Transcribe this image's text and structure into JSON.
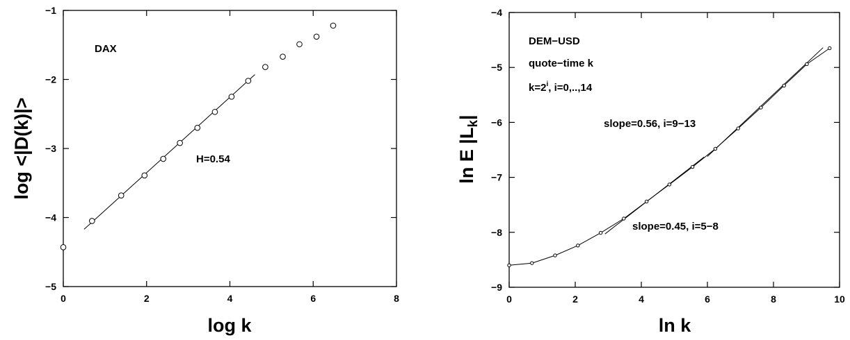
{
  "chart_data": [
    {
      "type": "scatter",
      "title": "",
      "xlabel": "log k",
      "ylabel": "log <|D(k)|>",
      "xlim": [
        0,
        8
      ],
      "ylim": [
        -5,
        -1
      ],
      "xticks": [
        "0",
        "2",
        "4",
        "6",
        "8"
      ],
      "yticks": [
        "−5",
        "−4",
        "−3",
        "−2",
        "−1"
      ],
      "annotations": {
        "label": "DAX",
        "hurst": "H=0.54"
      },
      "series": [
        {
          "points": [
            {
              "x": 0.0,
              "y": -4.43
            },
            {
              "x": 0.69,
              "y": -4.05
            },
            {
              "x": 1.39,
              "y": -3.68
            },
            {
              "x": 1.95,
              "y": -3.39
            },
            {
              "x": 2.4,
              "y": -3.15
            },
            {
              "x": 2.8,
              "y": -2.92
            },
            {
              "x": 3.22,
              "y": -2.7
            },
            {
              "x": 3.64,
              "y": -2.47
            },
            {
              "x": 4.04,
              "y": -2.25
            },
            {
              "x": 4.44,
              "y": -2.02
            },
            {
              "x": 4.85,
              "y": -1.82
            },
            {
              "x": 5.27,
              "y": -1.67
            },
            {
              "x": 5.67,
              "y": -1.49
            },
            {
              "x": 6.08,
              "y": -1.38
            },
            {
              "x": 6.48,
              "y": -1.22
            }
          ]
        },
        {
          "fit_line": [
            {
              "x": 0.5,
              "y": -4.17
            },
            {
              "x": 4.6,
              "y": -1.93
            }
          ]
        }
      ],
      "grid": false
    },
    {
      "type": "line",
      "title": "",
      "xlabel": "ln k",
      "ylabel": "ln E |L_k|",
      "xlim": [
        0,
        10
      ],
      "ylim": [
        -9,
        -4
      ],
      "xticks": [
        "0",
        "2",
        "4",
        "6",
        "8",
        "10"
      ],
      "yticks": [
        "−9",
        "−8",
        "−7",
        "−6",
        "−5",
        "−4"
      ],
      "annotations": {
        "line1": "DEM−USD",
        "line2": "quote−time k",
        "line3_prefix": "k=2",
        "line3_sup": "i",
        "line3_suffix": ", i=0,..,14",
        "slope_high": "slope=0.56, i=9−13",
        "slope_low": "slope=0.45, i=5−8"
      },
      "series": [
        {
          "points": [
            {
              "x": 0.0,
              "y": -8.6
            },
            {
              "x": 0.69,
              "y": -8.56
            },
            {
              "x": 1.39,
              "y": -8.42
            },
            {
              "x": 2.08,
              "y": -8.24
            },
            {
              "x": 2.77,
              "y": -8.01
            },
            {
              "x": 3.47,
              "y": -7.75
            },
            {
              "x": 4.16,
              "y": -7.44
            },
            {
              "x": 4.85,
              "y": -7.13
            },
            {
              "x": 5.55,
              "y": -6.81
            },
            {
              "x": 6.24,
              "y": -6.48
            },
            {
              "x": 6.93,
              "y": -6.11
            },
            {
              "x": 7.62,
              "y": -5.73
            },
            {
              "x": 8.32,
              "y": -5.33
            },
            {
              "x": 9.01,
              "y": -4.94
            },
            {
              "x": 9.7,
              "y": -4.65
            }
          ]
        },
        {
          "fit_line_high": [
            {
              "x": 6.0,
              "y": -6.62
            },
            {
              "x": 9.5,
              "y": -4.64
            }
          ],
          "fit_line_low": [
            {
              "x": 2.9,
              "y": -8.03
            },
            {
              "x": 5.9,
              "y": -6.63
            }
          ]
        }
      ],
      "grid": false
    }
  ]
}
